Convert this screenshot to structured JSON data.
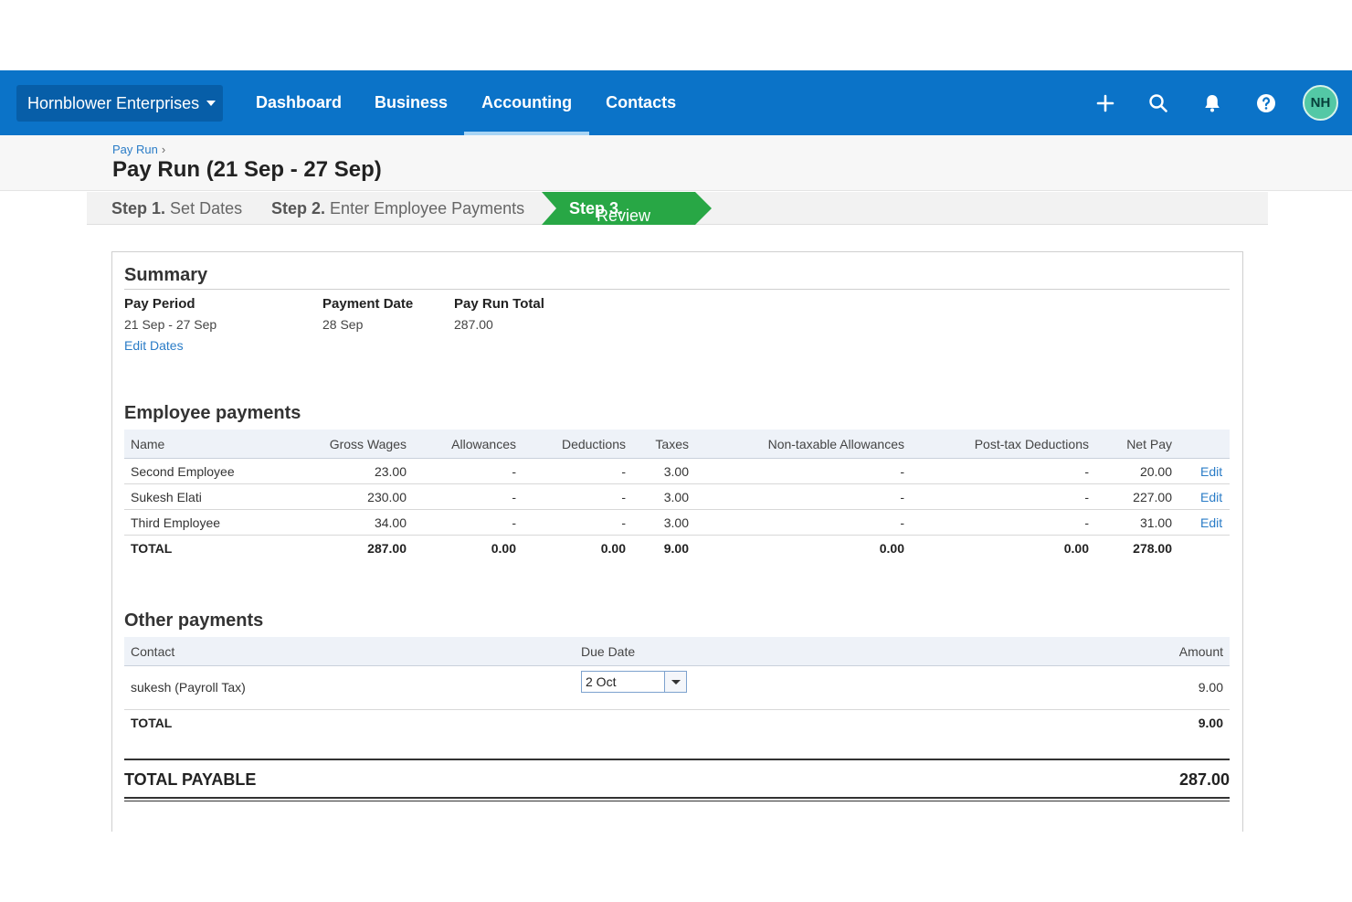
{
  "topbar": {
    "org_name": "Hornblower Enterprises",
    "nav": [
      "Dashboard",
      "Business",
      "Accounting",
      "Contacts"
    ],
    "active_nav": "Accounting",
    "avatar_initials": "NH",
    "icons": [
      "plus-icon",
      "search-icon",
      "bell-icon",
      "help-icon"
    ],
    "colors": {
      "bar": "#0b73c8",
      "org_btn": "#075ea8",
      "avatar": "#53c8a5"
    }
  },
  "header": {
    "breadcrumb": "Pay Run",
    "breadcrumb_sep": "›",
    "title": "Pay Run (21 Sep - 27 Sep)"
  },
  "steps": [
    {
      "num": "Step 1.",
      "label": "Set Dates"
    },
    {
      "num": "Step 2.",
      "label": "Enter Employee Payments"
    },
    {
      "num": "Step 3.",
      "label": "Review",
      "active": true,
      "color": "#28a745"
    }
  ],
  "summary": {
    "title": "Summary",
    "pay_period_label": "Pay Period",
    "pay_period": "21 Sep - 27 Sep",
    "edit_dates": "Edit Dates",
    "payment_date_label": "Payment Date",
    "payment_date": "28 Sep",
    "pay_run_total_label": "Pay Run Total",
    "pay_run_total": "287.00"
  },
  "employee_payments": {
    "title": "Employee payments",
    "columns": [
      "Name",
      "Gross Wages",
      "Allowances",
      "Deductions",
      "Taxes",
      "Non-taxable Allowances",
      "Post-tax Deductions",
      "Net Pay"
    ],
    "rows": [
      {
        "name": "Second Employee",
        "gross": "23.00",
        "allowances": "-",
        "deductions": "-",
        "taxes": "3.00",
        "nontax": "-",
        "posttax": "-",
        "net": "20.00",
        "edit": "Edit"
      },
      {
        "name": "Sukesh Elati",
        "gross": "230.00",
        "allowances": "-",
        "deductions": "-",
        "taxes": "3.00",
        "nontax": "-",
        "posttax": "-",
        "net": "227.00",
        "edit": "Edit"
      },
      {
        "name": "Third Employee",
        "gross": "34.00",
        "allowances": "-",
        "deductions": "-",
        "taxes": "3.00",
        "nontax": "-",
        "posttax": "-",
        "net": "31.00",
        "edit": "Edit"
      }
    ],
    "total": {
      "label": "TOTAL",
      "gross": "287.00",
      "allowances": "0.00",
      "deductions": "0.00",
      "taxes": "9.00",
      "nontax": "0.00",
      "posttax": "0.00",
      "net": "278.00"
    }
  },
  "other_payments": {
    "title": "Other payments",
    "columns": [
      "Contact",
      "Due Date",
      "Amount"
    ],
    "row": {
      "contact": "sukesh (Payroll Tax)",
      "due_date": "2 Oct",
      "amount": "9.00"
    },
    "total": {
      "label": "TOTAL",
      "amount": "9.00"
    }
  },
  "total_payable": {
    "label": "TOTAL PAYABLE",
    "amount": "287.00"
  }
}
